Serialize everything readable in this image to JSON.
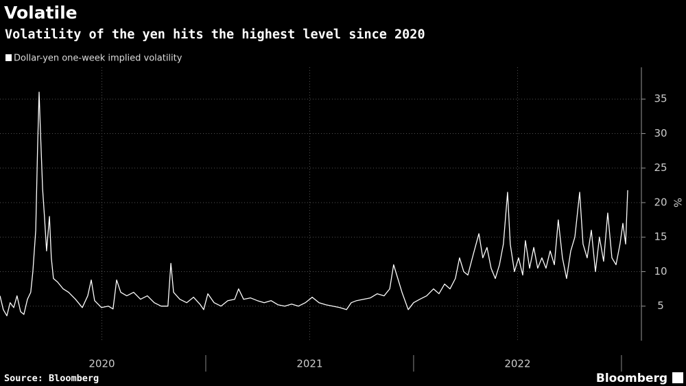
{
  "chart_data": {
    "type": "line",
    "title": "Volatile",
    "subtitle": "Volatility of the yen hits the highest level since 2020",
    "y_unit": "%",
    "source": "Source: Bloomberg",
    "brand": "Bloomberg",
    "grid": true,
    "xlim": [
      2020.01,
      2023.096
    ],
    "xticks": [
      {
        "value": 2020.5,
        "label": "2020"
      },
      {
        "value": 2021.5,
        "label": "2021"
      },
      {
        "value": 2022.5,
        "label": "2022"
      }
    ],
    "x_year_boundaries": [
      2021,
      2022,
      2023
    ],
    "ylim": [
      0,
      39.6
    ],
    "yticks": [
      5,
      10,
      15,
      20,
      25,
      30,
      35
    ],
    "x": [
      2020.01,
      2020.026,
      2020.043,
      2020.059,
      2020.076,
      2020.092,
      2020.109,
      2020.125,
      2020.142,
      2020.158,
      2020.168,
      2020.182,
      2020.191,
      2020.198,
      2020.205,
      2020.215,
      2020.224,
      2020.234,
      2020.248,
      2020.257,
      2020.267,
      2020.287,
      2020.314,
      2020.34,
      2020.373,
      2020.406,
      2020.432,
      2020.449,
      2020.465,
      2020.498,
      2020.531,
      2020.554,
      2020.571,
      2020.591,
      2020.62,
      2020.653,
      2020.686,
      2020.719,
      2020.752,
      2020.785,
      2020.818,
      2020.832,
      2020.845,
      2020.875,
      2020.908,
      2020.941,
      2020.974,
      2020.99,
      2021.01,
      2021.04,
      2021.073,
      2021.106,
      2021.139,
      2021.158,
      2021.182,
      2021.215,
      2021.248,
      2021.281,
      2021.314,
      2021.347,
      2021.38,
      2021.413,
      2021.446,
      2021.479,
      2021.512,
      2021.545,
      2021.578,
      2021.611,
      2021.644,
      2021.677,
      2021.7,
      2021.726,
      2021.759,
      2021.792,
      2021.825,
      2021.858,
      2021.885,
      2021.904,
      2021.924,
      2021.944,
      2021.974,
      2022.0,
      2022.03,
      2022.063,
      2022.096,
      2022.122,
      2022.149,
      2022.175,
      2022.201,
      2022.221,
      2022.241,
      2022.261,
      2022.287,
      2022.314,
      2022.333,
      2022.353,
      2022.373,
      2022.393,
      2022.413,
      2022.432,
      2022.452,
      2022.465,
      2022.485,
      2022.505,
      2022.525,
      2022.538,
      2022.558,
      2022.578,
      2022.597,
      2022.617,
      2022.637,
      2022.657,
      2022.677,
      2022.696,
      2022.716,
      2022.736,
      2022.756,
      2022.776,
      2022.799,
      2022.815,
      2022.835,
      2022.855,
      2022.875,
      2022.894,
      2022.914,
      2022.934,
      2022.954,
      2022.974,
      2022.993,
      2023.007,
      2023.02,
      2023.03
    ],
    "series": [
      {
        "name": "Dollar-yen one-week implied volatility",
        "color": "#ffffff",
        "values": [
          6.5,
          4.5,
          3.6,
          5.5,
          4.8,
          6.5,
          4.2,
          3.8,
          6,
          7,
          10,
          16,
          28,
          36,
          30,
          22,
          18,
          13,
          18,
          12,
          9,
          8.5,
          7.5,
          7,
          6,
          4.8,
          6.5,
          8.8,
          5.8,
          4.8,
          5,
          4.6,
          8.8,
          7,
          6.5,
          7,
          6,
          6.5,
          5.5,
          5,
          5,
          11.2,
          7,
          6,
          5.5,
          6.3,
          5.2,
          4.5,
          6.8,
          5.5,
          5,
          5.8,
          6,
          7.5,
          6,
          6.2,
          5.8,
          5.5,
          5.8,
          5.2,
          5,
          5.3,
          5,
          5.5,
          6.3,
          5.5,
          5.2,
          5,
          4.8,
          4.5,
          5.5,
          5.8,
          6,
          6.2,
          6.8,
          6.5,
          7.5,
          11,
          9,
          7,
          4.5,
          5.5,
          6,
          6.5,
          7.5,
          6.8,
          8.2,
          7.5,
          9,
          12,
          10,
          9.5,
          12.5,
          15.5,
          12,
          13.5,
          10.5,
          9,
          11,
          14,
          21.5,
          14,
          10,
          12,
          9.5,
          14.5,
          10.5,
          13.5,
          10.5,
          12,
          10.5,
          13,
          11,
          17.5,
          12,
          9,
          13,
          15,
          21.5,
          14,
          12,
          16,
          10,
          15,
          11.5,
          18.5,
          12,
          11,
          14,
          17,
          14,
          21.8
        ]
      }
    ]
  }
}
